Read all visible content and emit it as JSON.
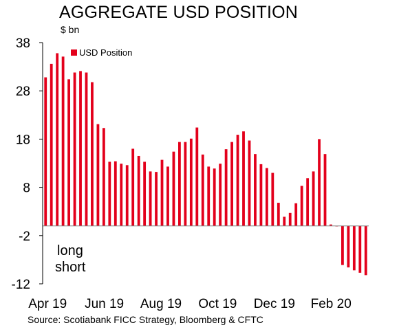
{
  "chart_data": {
    "type": "bar",
    "title": "AGGREGATE USD POSITION",
    "ylabel": "$ bn",
    "ylim": [
      -12,
      38
    ],
    "yticks": [
      38,
      28,
      18,
      8,
      -2,
      -12
    ],
    "x_tick_labels": [
      "Apr 19",
      "Jun 19",
      "Aug 19",
      "Oct 19",
      "Dec 19",
      "Feb 20"
    ],
    "legend_position": "top-left",
    "grid": false,
    "annotations": [
      "long",
      "short"
    ],
    "source": "Source: Scotiabank FICC Strategy, Bloomberg & CFTC",
    "bar_color": "#e3001b",
    "series": [
      {
        "name": "USD Position",
        "values": [
          30.8,
          33.6,
          35.8,
          35.1,
          30.4,
          31.8,
          32.1,
          31.8,
          29.8,
          21.1,
          20.3,
          13.3,
          13.4,
          12.9,
          12.6,
          16.0,
          14.5,
          13.3,
          11.3,
          11.2,
          13.7,
          12.3,
          15.4,
          17.4,
          17.4,
          18.1,
          20.4,
          14.8,
          12.3,
          11.9,
          12.9,
          15.9,
          17.4,
          18.9,
          19.6,
          17.7,
          14.9,
          12.8,
          12.0,
          11.0,
          4.8,
          1.9,
          2.7,
          4.7,
          8.3,
          9.9,
          11.3,
          18.0,
          14.9,
          0.3,
          -0.1,
          -8.1,
          -8.6,
          -9.2,
          -9.7,
          -10.2
        ]
      }
    ]
  }
}
